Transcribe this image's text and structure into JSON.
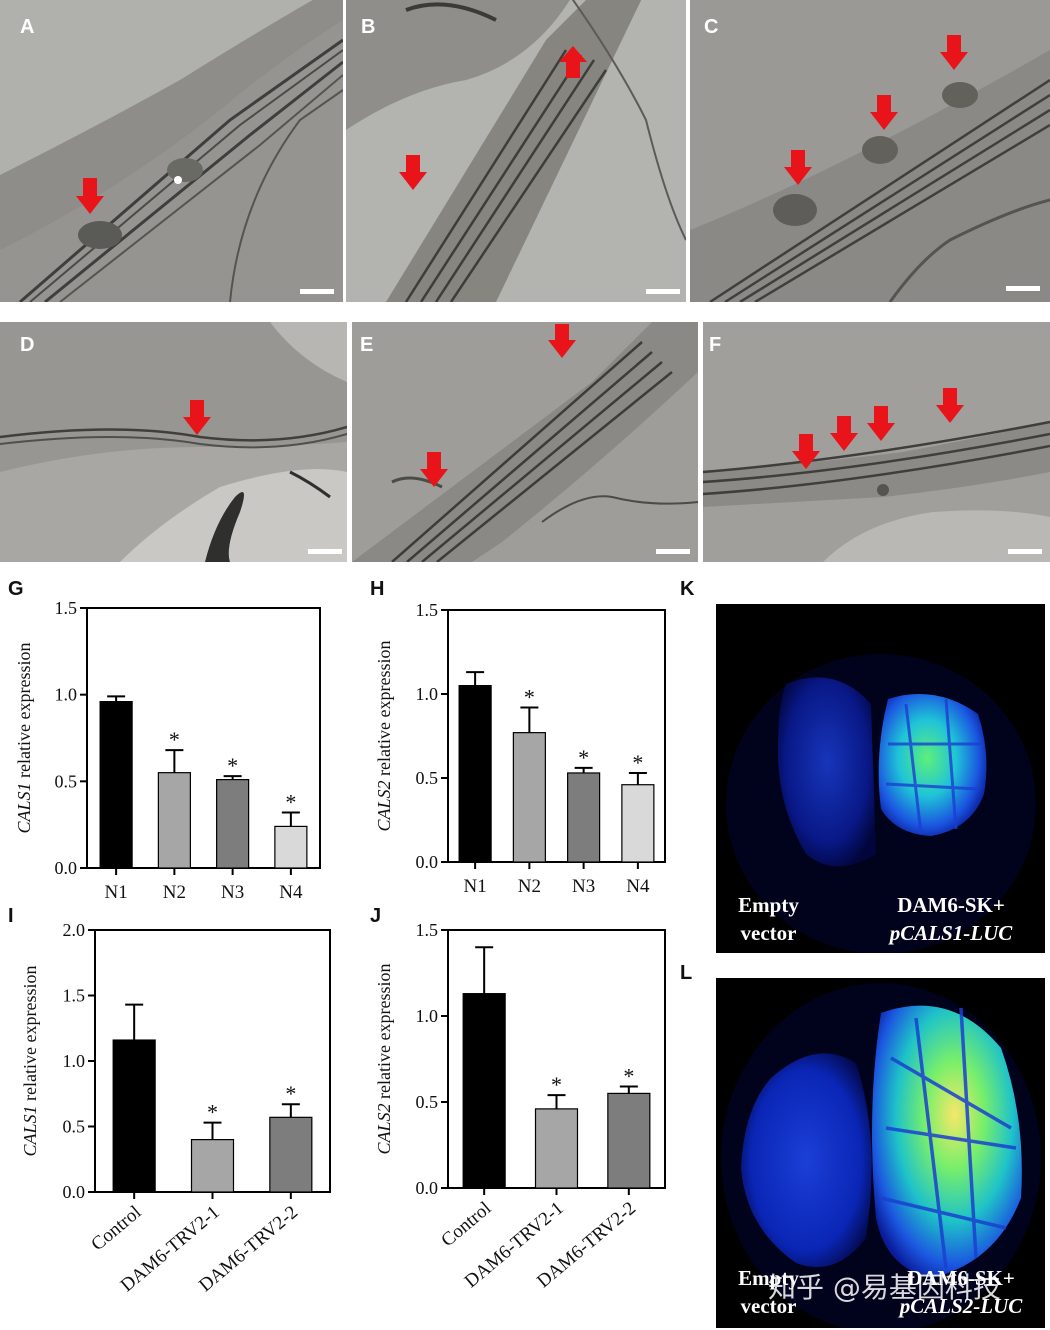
{
  "panels": {
    "A": {
      "label": "A"
    },
    "B": {
      "label": "B"
    },
    "C": {
      "label": "C"
    },
    "D": {
      "label": "D"
    },
    "E": {
      "label": "E"
    },
    "F": {
      "label": "F"
    },
    "G": {
      "label": "G"
    },
    "H": {
      "label": "H"
    },
    "I": {
      "label": "I"
    },
    "J": {
      "label": "J"
    },
    "K": {
      "label": "K"
    },
    "L": {
      "label": "L"
    }
  },
  "colors": {
    "arrow": "#e8141a",
    "bar_black": "#000000",
    "bar_n2": "#a6a6a6",
    "bar_n3": "#7d7d7d",
    "bar_n4": "#d9d9d9"
  },
  "chart_data": [
    {
      "panel": "G",
      "type": "bar",
      "ylabel_gene": "CALS1",
      "ylabel_rest": " relative expression",
      "ylim": [
        0,
        1.5
      ],
      "yticks": [
        "0.0",
        "0.5",
        "1.0",
        "1.5"
      ],
      "categories": [
        "N1",
        "N2",
        "N3",
        "N4"
      ],
      "values": [
        0.96,
        0.55,
        0.51,
        0.24
      ],
      "errors": [
        0.03,
        0.13,
        0.02,
        0.08
      ],
      "significance": [
        "",
        "*",
        "*",
        "*"
      ]
    },
    {
      "panel": "H",
      "type": "bar",
      "ylabel_gene": "CALS2",
      "ylabel_rest": " relative expression",
      "ylim": [
        0,
        1.5
      ],
      "yticks": [
        "0.0",
        "0.5",
        "1.0",
        "1.5"
      ],
      "categories": [
        "N1",
        "N2",
        "N3",
        "N4"
      ],
      "values": [
        1.05,
        0.77,
        0.53,
        0.46
      ],
      "errors": [
        0.08,
        0.15,
        0.03,
        0.07
      ],
      "significance": [
        "",
        "*",
        "*",
        "*"
      ]
    },
    {
      "panel": "I",
      "type": "bar",
      "ylabel_gene": "CALS1",
      "ylabel_rest": " relative expression",
      "ylim": [
        0,
        2.0
      ],
      "yticks": [
        "0.0",
        "0.5",
        "1.0",
        "1.5",
        "2.0"
      ],
      "categories": [
        "Control",
        "DAM6-TRV2-1",
        "DAM6-TRV2-2"
      ],
      "values": [
        1.16,
        0.4,
        0.57
      ],
      "errors": [
        0.27,
        0.13,
        0.1
      ],
      "significance": [
        "",
        "*",
        "*"
      ]
    },
    {
      "panel": "J",
      "type": "bar",
      "ylabel_gene": "CALS2",
      "ylabel_rest": " relative expression",
      "ylim": [
        0,
        1.5
      ],
      "yticks": [
        "0.0",
        "0.5",
        "1.0",
        "1.5"
      ],
      "categories": [
        "Control",
        "DAM6-TRV2-1",
        "DAM6-TRV2-2"
      ],
      "values": [
        1.13,
        0.46,
        0.55
      ],
      "errors": [
        0.27,
        0.08,
        0.04
      ],
      "significance": [
        "",
        "*",
        "*"
      ]
    }
  ],
  "luc_k": {
    "left_line1": "Empty",
    "left_line2": "vector",
    "right_line1": "DAM6-SK+",
    "right_line2": "pCALS1-LUC"
  },
  "luc_l": {
    "left_line1": "Empty",
    "left_line2": "vector",
    "right_line1": "DAM6-SK+",
    "right_line2": "pCALS2-LUC"
  },
  "watermark": "知乎 @易基因科技"
}
